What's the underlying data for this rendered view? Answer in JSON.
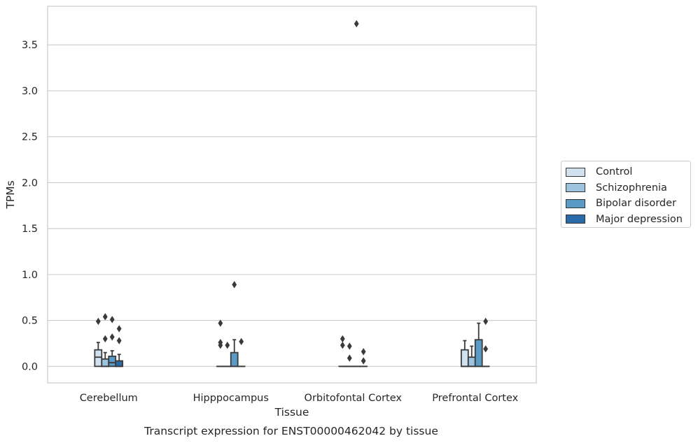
{
  "chart_data": {
    "type": "boxplot",
    "title": "",
    "caption": "Transcript expression for ENST00000462042 by tissue",
    "xlabel": "Tissue",
    "ylabel": "TPMs",
    "ylim": [
      -0.18,
      3.92
    ],
    "yticks": [
      "0.0",
      "0.5",
      "1.0",
      "1.5",
      "2.0",
      "2.5",
      "3.0",
      "3.5"
    ],
    "ytick_values": [
      0,
      0.5,
      1.0,
      1.5,
      2.0,
      2.5,
      3.0,
      3.5
    ],
    "grid": "horizontal",
    "legend_position": "outside-right",
    "categories": [
      "Cerebellum",
      "Hipppocampus",
      "Orbitofontal Cortex",
      "Prefrontal Cortex"
    ],
    "series": [
      {
        "name": "Control",
        "color": "#d1e1ef",
        "boxes": [
          {
            "q1": 0.0,
            "median": 0.1,
            "q3": 0.18,
            "whisker_low": 0.0,
            "whisker_high": 0.26,
            "outliers": [
              0.49
            ]
          },
          {
            "q1": 0.0,
            "median": 0.0,
            "q3": 0.0,
            "whisker_low": 0.0,
            "whisker_high": 0.0,
            "outliers": [
              0.47,
              0.26,
              0.23
            ]
          },
          {
            "q1": 0.0,
            "median": 0.0,
            "q3": 0.0,
            "whisker_low": 0.0,
            "whisker_high": 0.0,
            "outliers": [
              0.3,
              0.23
            ]
          },
          {
            "q1": 0.0,
            "median": 0.0,
            "q3": 0.18,
            "whisker_low": 0.0,
            "whisker_high": 0.28,
            "outliers": []
          }
        ]
      },
      {
        "name": "Schizophrenia",
        "color": "#9dc3de",
        "boxes": [
          {
            "q1": 0.0,
            "median": 0.0,
            "q3": 0.08,
            "whisker_low": 0.0,
            "whisker_high": 0.15,
            "outliers": [
              0.54,
              0.3
            ]
          },
          {
            "q1": 0.0,
            "median": 0.0,
            "q3": 0.0,
            "whisker_low": 0.0,
            "whisker_high": 0.0,
            "outliers": [
              0.23
            ]
          },
          {
            "q1": 0.0,
            "median": 0.0,
            "q3": 0.0,
            "whisker_low": 0.0,
            "whisker_high": 0.0,
            "outliers": [
              0.22,
              0.09
            ]
          },
          {
            "q1": 0.0,
            "median": 0.0,
            "q3": 0.1,
            "whisker_low": 0.0,
            "whisker_high": 0.22,
            "outliers": []
          }
        ]
      },
      {
        "name": "Bipolar disorder",
        "color": "#5a9bc6",
        "boxes": [
          {
            "q1": 0.0,
            "median": 0.04,
            "q3": 0.11,
            "whisker_low": 0.0,
            "whisker_high": 0.17,
            "outliers": [
              0.51,
              0.32
            ]
          },
          {
            "q1": 0.0,
            "median": 0.0,
            "q3": 0.15,
            "whisker_low": 0.0,
            "whisker_high": 0.29,
            "outliers": [
              0.89
            ]
          },
          {
            "q1": 0.0,
            "median": 0.0,
            "q3": 0.0,
            "whisker_low": 0.0,
            "whisker_high": 0.0,
            "outliers": [
              3.73
            ]
          },
          {
            "q1": 0.0,
            "median": 0.0,
            "q3": 0.29,
            "whisker_low": 0.0,
            "whisker_high": 0.47,
            "outliers": []
          }
        ]
      },
      {
        "name": "Major depression",
        "color": "#2a6aa8",
        "boxes": [
          {
            "q1": 0.0,
            "median": 0.0,
            "q3": 0.06,
            "whisker_low": 0.0,
            "whisker_high": 0.13,
            "outliers": [
              0.41,
              0.28
            ]
          },
          {
            "q1": 0.0,
            "median": 0.0,
            "q3": 0.0,
            "whisker_low": 0.0,
            "whisker_high": 0.0,
            "outliers": [
              0.27
            ]
          },
          {
            "q1": 0.0,
            "median": 0.0,
            "q3": 0.0,
            "whisker_low": 0.0,
            "whisker_high": 0.0,
            "outliers": [
              0.16,
              0.06
            ]
          },
          {
            "q1": 0.0,
            "median": 0.0,
            "q3": 0.0,
            "whisker_low": 0.0,
            "whisker_high": 0.0,
            "outliers": [
              0.49,
              0.19
            ]
          }
        ]
      }
    ]
  }
}
